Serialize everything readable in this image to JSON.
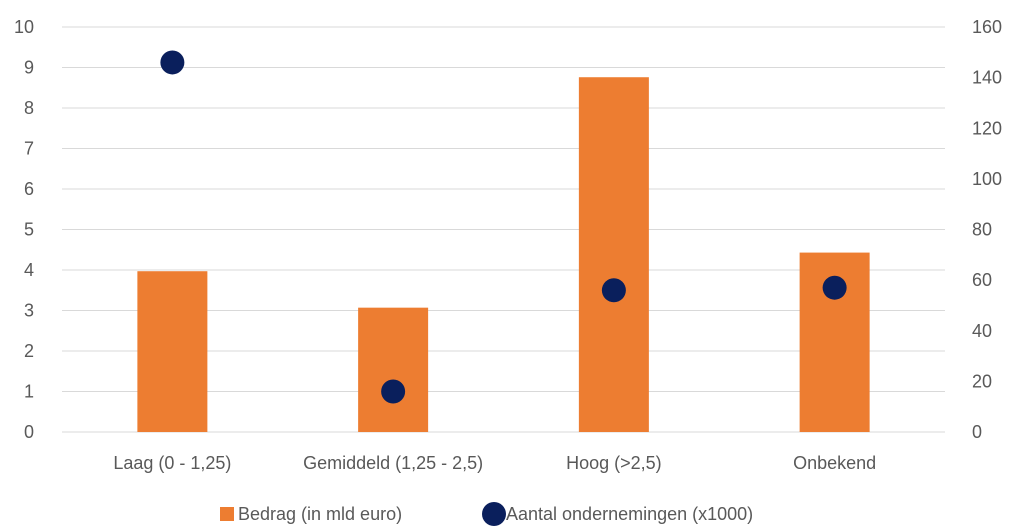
{
  "chart_data": {
    "type": "bar",
    "categories": [
      "Laag (0 - 1,25)",
      "Gemiddeld (1,25 - 2,5)",
      "Hoog (>2,5)",
      "Onbekend"
    ],
    "series": [
      {
        "name": "Bedrag (in mld euro)",
        "type": "bar",
        "axis": "left",
        "color": "#ED7D31",
        "values": [
          3.97,
          3.07,
          8.76,
          4.43
        ]
      },
      {
        "name": "Aantal ondernemingen (x1000)",
        "type": "scatter",
        "axis": "right",
        "color": "#0A1F5C",
        "values": [
          146,
          16,
          56,
          57
        ]
      }
    ],
    "y_left": {
      "ylim": [
        0,
        10
      ],
      "ticks": [
        "0",
        "1",
        "2",
        "3",
        "4",
        "5",
        "6",
        "7",
        "8",
        "9",
        "10"
      ]
    },
    "y_right": {
      "ylim": [
        0,
        160
      ],
      "ticks": [
        "0",
        "20",
        "40",
        "60",
        "80",
        "100",
        "120",
        "140",
        "160"
      ]
    },
    "grid": true,
    "legend_position": "bottom",
    "colors": {
      "grid": "#D9D9D9",
      "text": "#595959"
    }
  }
}
